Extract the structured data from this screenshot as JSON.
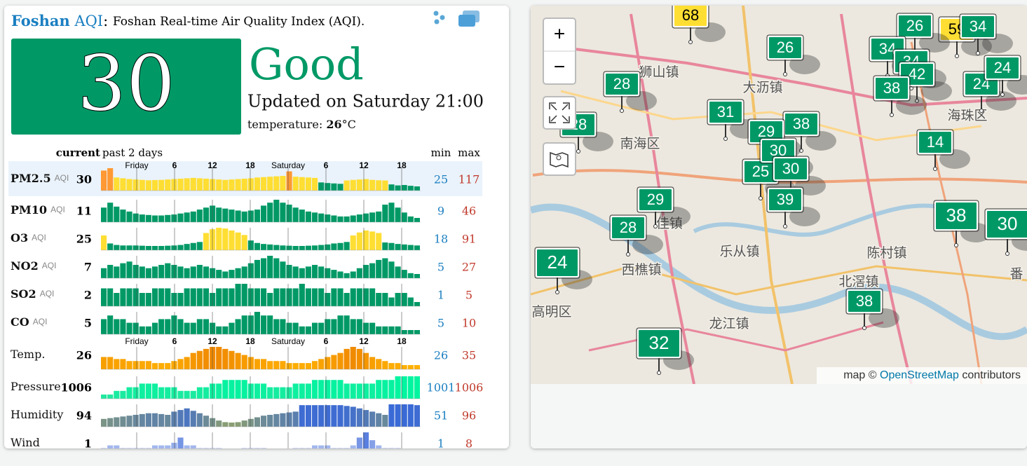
{
  "header": {
    "city": "Foshan",
    "aqi_word": "AQI",
    "colon": ":",
    "description": "Foshan Real-time Air Quality Index (AQI)."
  },
  "summary": {
    "aqi": 30,
    "level": "Good",
    "updated": "Updated on Saturday 21:00",
    "temperature_label": "temperature:",
    "temperature": 26,
    "temperature_unit": "°C"
  },
  "table": {
    "headers": {
      "current": "current",
      "history": "past 2 days",
      "min": "min",
      "max": "max"
    },
    "time_labels": [
      "Friday",
      "6",
      "12",
      "18",
      "Saturday",
      "6",
      "12",
      "18"
    ],
    "aqi_scale": [
      {
        "max": 50,
        "color": "#009966"
      },
      {
        "max": 100,
        "color": "#ffde33"
      },
      {
        "max": 150,
        "color": "#ff9933"
      }
    ],
    "rows": [
      {
        "name": "PM2.5",
        "unit": "AQI",
        "current": 30,
        "min": 25,
        "max": 117,
        "scale": "aqi",
        "values": [
          105,
          117,
          70,
          66,
          62,
          60,
          58,
          56,
          57,
          58,
          60,
          62,
          64,
          66,
          68,
          66,
          64,
          62,
          60,
          58,
          60,
          62,
          64,
          66,
          70,
          72,
          74,
          76,
          78,
          101,
          74,
          72,
          70,
          68,
          45,
          42,
          40,
          38,
          55,
          58,
          60,
          62,
          58,
          56,
          55,
          35,
          30,
          32,
          28,
          25
        ]
      },
      {
        "name": "PM10",
        "unit": "AQI",
        "current": 11,
        "min": 9,
        "max": 46,
        "scale": "aqi",
        "values": [
          30,
          40,
          32,
          26,
          22,
          18,
          16,
          15,
          14,
          14,
          15,
          16,
          18,
          20,
          22,
          26,
          30,
          34,
          30,
          28,
          26,
          24,
          22,
          24,
          26,
          34,
          40,
          46,
          40,
          36,
          30,
          26,
          22,
          20,
          18,
          16,
          14,
          12,
          12,
          14,
          16,
          18,
          20,
          22,
          36,
          40,
          30,
          20,
          12,
          9
        ]
      },
      {
        "name": "O3",
        "unit": "AQI",
        "current": 25,
        "min": 18,
        "max": 91,
        "scale": "aqi",
        "values": [
          60,
          28,
          22,
          20,
          20,
          20,
          19,
          18,
          18,
          18,
          19,
          20,
          22,
          26,
          30,
          34,
          70,
          85,
          91,
          88,
          80,
          72,
          62,
          40,
          30,
          26,
          24,
          22,
          20,
          19,
          18,
          18,
          19,
          20,
          22,
          24,
          28,
          30,
          34,
          60,
          72,
          80,
          76,
          70,
          32,
          30,
          26,
          24,
          22,
          20
        ]
      },
      {
        "name": "NO2",
        "unit": "AQI",
        "current": 7,
        "min": 5,
        "max": 27,
        "scale": "aqi",
        "values": [
          12,
          16,
          14,
          18,
          20,
          16,
          14,
          12,
          14,
          16,
          18,
          16,
          14,
          12,
          14,
          16,
          14,
          12,
          10,
          8,
          10,
          12,
          14,
          18,
          22,
          24,
          27,
          24,
          20,
          16,
          14,
          12,
          14,
          16,
          14,
          12,
          10,
          8,
          6,
          8,
          12,
          16,
          18,
          22,
          24,
          20,
          14,
          10,
          6,
          5
        ]
      },
      {
        "name": "SO2",
        "unit": "AQI",
        "current": 2,
        "min": 1,
        "max": 5,
        "scale": "aqi",
        "values": [
          4,
          4,
          3,
          4,
          4,
          4,
          3,
          3,
          4,
          4,
          4,
          3,
          3,
          4,
          4,
          4,
          4,
          3,
          4,
          4,
          4,
          5,
          5,
          4,
          4,
          4,
          3,
          4,
          4,
          4,
          4,
          5,
          4,
          4,
          4,
          3,
          4,
          4,
          3,
          4,
          4,
          4,
          4,
          3,
          3,
          2,
          3,
          3,
          2,
          1
        ]
      },
      {
        "name": "CO",
        "unit": "AQI",
        "current": 5,
        "min": 5,
        "max": 10,
        "scale": "aqi",
        "values": [
          8,
          9,
          8,
          8,
          7,
          7,
          6,
          6,
          7,
          8,
          8,
          9,
          8,
          7,
          7,
          8,
          8,
          7,
          6,
          6,
          7,
          8,
          9,
          9,
          10,
          9,
          9,
          8,
          8,
          7,
          7,
          6,
          6,
          7,
          7,
          8,
          8,
          9,
          9,
          8,
          8,
          7,
          7,
          6,
          6,
          6,
          6,
          5,
          5,
          5
        ]
      },
      {
        "name": "Temp.",
        "current": 26,
        "min": 26,
        "max": 35,
        "color_range": [
          "#ffb000",
          "#f08a00"
        ],
        "axis_above": true,
        "values": [
          30,
          30,
          29,
          29,
          28,
          28,
          28,
          28,
          27,
          27,
          27,
          28,
          29,
          30,
          32,
          33,
          34,
          35,
          35,
          34,
          33,
          32,
          31,
          30,
          29,
          29,
          28,
          28,
          28,
          27,
          27,
          27,
          27,
          28,
          29,
          30,
          31,
          32,
          34,
          35,
          34,
          32,
          30,
          29,
          28,
          27,
          27,
          26,
          26,
          26
        ]
      },
      {
        "name": "Pressure",
        "current": 1006,
        "min": 1001,
        "max": 1006,
        "color_range": [
          "#22e8a0",
          "#00f5a0"
        ],
        "values": [
          1001,
          1001,
          1002,
          1002,
          1003,
          1003,
          1004,
          1004,
          1004,
          1003,
          1003,
          1003,
          1002,
          1002,
          1002,
          1003,
          1003,
          1004,
          1004,
          1005,
          1005,
          1005,
          1005,
          1004,
          1004,
          1004,
          1003,
          1003,
          1003,
          1003,
          1004,
          1004,
          1004,
          1005,
          1005,
          1005,
          1005,
          1005,
          1004,
          1004,
          1004,
          1004,
          1004,
          1005,
          1005,
          1005,
          1006,
          1006,
          1006,
          1006
        ]
      },
      {
        "name": "Humidity",
        "current": 94,
        "min": 51,
        "max": 96,
        "color_range": [
          "#8a9e72",
          "#3a6ad6"
        ],
        "values": [
          60,
          62,
          64,
          66,
          68,
          70,
          72,
          74,
          74,
          72,
          70,
          78,
          82,
          86,
          80,
          74,
          68,
          62,
          56,
          52,
          51,
          52,
          56,
          60,
          64,
          68,
          70,
          72,
          74,
          76,
          78,
          94,
          94,
          94,
          94,
          94,
          94,
          94,
          92,
          90,
          86,
          82,
          78,
          74,
          70,
          96,
          96,
          96,
          96,
          94
        ]
      },
      {
        "name": "Wind",
        "current": 1,
        "min": 1,
        "max": 8,
        "color_range": [
          "#c0cdf2",
          "#5a7fe0"
        ],
        "values": [
          2,
          3,
          3,
          2,
          2,
          2,
          2,
          2,
          3,
          3,
          3,
          4,
          6,
          3,
          3,
          2,
          2,
          2,
          2,
          1,
          1,
          1,
          2,
          2,
          2,
          2,
          1,
          1,
          1,
          1,
          2,
          2,
          2,
          3,
          3,
          3,
          2,
          2,
          2,
          3,
          6,
          8,
          5,
          3,
          2,
          2,
          2,
          1,
          1,
          1
        ]
      }
    ]
  },
  "map": {
    "controls": [
      "+",
      "−"
    ],
    "places": [
      "狮山镇",
      "大沥镇",
      "南海区",
      "海珠区",
      "佳镇",
      "乐从镇",
      "陈村镇",
      "西樵镇",
      "北滘镇",
      "高明区",
      "龙江镇",
      "番"
    ],
    "markers": [
      68,
      26,
      28,
      28,
      31,
      38,
      29,
      25,
      30,
      30,
      39,
      29,
      28,
      24,
      32,
      38,
      14,
      38,
      30,
      24,
      59,
      26,
      34,
      34,
      42,
      38,
      24,
      34
    ],
    "attribution": {
      "prefix": "map ©",
      "link": "OpenStreetMap",
      "suffix": "contributors"
    }
  }
}
